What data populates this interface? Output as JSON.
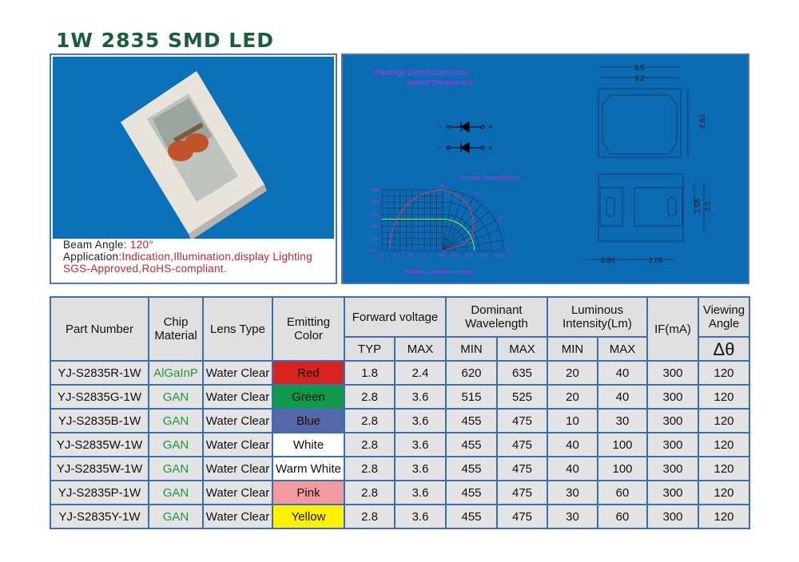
{
  "title": "1W 2835 SMD LED",
  "specs": {
    "beam_label": "Beam Angle: ",
    "beam_value": "120°",
    "app_label": "Application:",
    "app_value": "Indication,Illumination,display Lighting",
    "cert": "SGS-Approved,RoHS-compliant."
  },
  "drawing": {
    "title": "Package Dimensions(mm)",
    "tolerance": "General Tolerance ±0.2",
    "directive": "Directive Characteristics",
    "intensity": "Relative Luminous Intensity",
    "minus": "-",
    "plus": "+",
    "dims": {
      "w1": "3.5",
      "w2": "3.2",
      "h1": "2.63",
      "h2": "2.0",
      "h3": "1.58",
      "b1": "0.95",
      "b2": "2.06"
    },
    "y_ticks": [
      "100%",
      "80%",
      "60%",
      "40%",
      "20%",
      "0%"
    ],
    "x_ticks": [
      "90°",
      "60°",
      "30°",
      "0°",
      "20%",
      "40%",
      "60%",
      "80%",
      "100%"
    ],
    "angle_ticks": [
      "0°",
      "30°",
      "60°",
      "90°"
    ]
  },
  "table": {
    "headers": {
      "part": "Part Number",
      "chip": "Chip Material",
      "lens": "Lens Type",
      "color": "Emitting Color",
      "fv": "Forward voltage",
      "wl": "Dominant Wavelength",
      "li": "Luminous Intensity(Lm)",
      "if": "IF(mA)",
      "va": "Viewing Angle",
      "typ": "TYP",
      "max": "MAX",
      "min": "MIN",
      "symbol": "Δθ"
    },
    "rows": [
      {
        "part": "YJ-S2835R-1W",
        "chip": "AlGaInP",
        "lens": "Water Clear",
        "color": "Red",
        "bg": "#d8231f",
        "fg": "#111",
        "vtyp": "1.8",
        "vmax": "2.4",
        "wmin": "620",
        "wmax": "635",
        "lmin": "20",
        "lmax": "40",
        "if": "300",
        "angle": "120"
      },
      {
        "part": "YJ-S2835G-1W",
        "chip": "GAN",
        "lens": "Water Clear",
        "color": "Green",
        "bg": "#0f9a48",
        "fg": "#111",
        "vtyp": "2.8",
        "vmax": "3.6",
        "wmin": "515",
        "wmax": "525",
        "lmin": "20",
        "lmax": "40",
        "if": "300",
        "angle": "120"
      },
      {
        "part": "YJ-S2835B-1W",
        "chip": "GAN",
        "lens": "Water Clear",
        "color": "Blue",
        "bg": "#5468a8",
        "fg": "#111",
        "vtyp": "2.8",
        "vmax": "3.6",
        "wmin": "455",
        "wmax": "475",
        "lmin": "10",
        "lmax": "30",
        "if": "300",
        "angle": "120"
      },
      {
        "part": "YJ-S2835W-1W",
        "chip": "GAN",
        "lens": "Water Clear",
        "color": "White",
        "bg": "#ffffff",
        "fg": "#111",
        "vtyp": "2.8",
        "vmax": "3.6",
        "wmin": "455",
        "wmax": "475",
        "lmin": "40",
        "lmax": "100",
        "if": "300",
        "angle": "120"
      },
      {
        "part": "YJ-S2835W-1W",
        "chip": "GAN",
        "lens": "Water Clear",
        "color": "Warm White",
        "bg": "#ffffff",
        "fg": "#111",
        "vtyp": "2.8",
        "vmax": "3.6",
        "wmin": "455",
        "wmax": "475",
        "lmin": "40",
        "lmax": "100",
        "if": "300",
        "angle": "120"
      },
      {
        "part": "YJ-S2835P-1W",
        "chip": "GAN",
        "lens": "Water Clear",
        "color": "Pink",
        "bg": "#f19aa0",
        "fg": "#111",
        "vtyp": "2.8",
        "vmax": "3.6",
        "wmin": "455",
        "wmax": "475",
        "lmin": "30",
        "lmax": "60",
        "if": "300",
        "angle": "120"
      },
      {
        "part": "YJ-S2835Y-1W",
        "chip": "GAN",
        "lens": "Water Clear",
        "color": "Yellow",
        "bg": "#fff200",
        "fg": "#111",
        "vtyp": "2.8",
        "vmax": "3.6",
        "wmin": "455",
        "wmax": "475",
        "lmin": "30",
        "lmax": "60",
        "if": "300",
        "angle": "120"
      }
    ]
  }
}
